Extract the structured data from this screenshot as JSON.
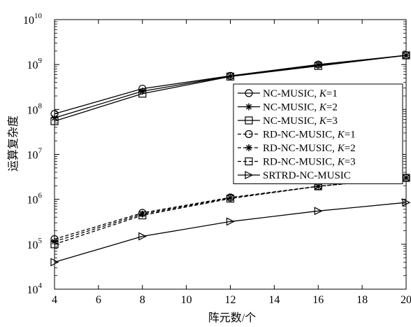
{
  "chart_data": {
    "type": "line",
    "title": "",
    "xlabel": "阵元数/个",
    "ylabel": "运算复杂度",
    "xlim": [
      4,
      20
    ],
    "ylim": [
      10000,
      10000000000
    ],
    "yscale": "log",
    "grid": false,
    "legend_position": "right",
    "x": [
      4,
      8,
      12,
      16,
      20
    ],
    "x_ticks": [
      "4",
      "6",
      "8",
      "10",
      "12",
      "14",
      "16",
      "18",
      "20"
    ],
    "y_ticks": [
      {
        "base": "10",
        "exp": "4"
      },
      {
        "base": "10",
        "exp": "5"
      },
      {
        "base": "10",
        "exp": "6"
      },
      {
        "base": "10",
        "exp": "7"
      },
      {
        "base": "10",
        "exp": "8"
      },
      {
        "base": "10",
        "exp": "9"
      },
      {
        "base": "10",
        "exp": "10"
      }
    ],
    "series": [
      {
        "name": "NC-MUSIC, ",
        "name_italic": "K",
        "name_suffix": "=1",
        "marker": "circle",
        "dash": "solid",
        "values": [
          80000000,
          290000000,
          560000000,
          1000000000,
          1600000000
        ]
      },
      {
        "name": "NC-MUSIC, ",
        "name_italic": "K",
        "name_suffix": "=2",
        "marker": "star",
        "dash": "solid",
        "values": [
          65000000,
          255000000,
          550000000,
          970000000,
          1600000000
        ]
      },
      {
        "name": "NC-MUSIC, ",
        "name_italic": "K",
        "name_suffix": "=3",
        "marker": "square",
        "dash": "solid",
        "values": [
          55000000,
          225000000,
          540000000,
          930000000,
          1600000000
        ]
      },
      {
        "name": "RD-NC-MUSIC, ",
        "name_italic": "K",
        "name_suffix": "=1",
        "marker": "circle",
        "dash": "dashed",
        "values": [
          130000,
          500000,
          1100000,
          1950000,
          3000000
        ]
      },
      {
        "name": "RD-NC-MUSIC, ",
        "name_italic": "K",
        "name_suffix": "=2",
        "marker": "star",
        "dash": "dashed",
        "values": [
          115000,
          470000,
          1070000,
          1950000,
          3000000
        ]
      },
      {
        "name": "RD-NC-MUSIC, ",
        "name_italic": "K",
        "name_suffix": "=3",
        "marker": "square",
        "dash": "dashed",
        "values": [
          100000,
          440000,
          1040000,
          1950000,
          3000000
        ]
      },
      {
        "name": "SRTRD-NC-MUSIC",
        "name_italic": "",
        "name_suffix": "",
        "marker": "triangle-right",
        "dash": "solid",
        "values": [
          40000,
          150000,
          320000,
          550000,
          850000
        ]
      }
    ]
  }
}
